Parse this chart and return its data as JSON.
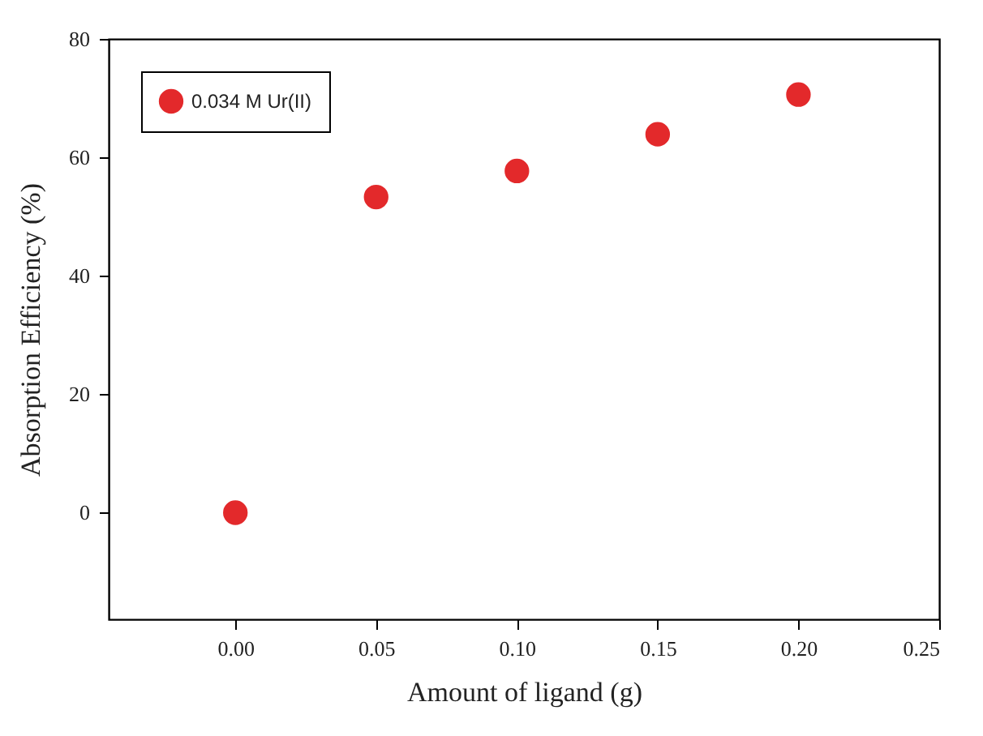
{
  "chart_data": {
    "type": "scatter",
    "xlabel": "Amount of ligand (g)",
    "ylabel": "Absorption Efficiency (%)",
    "x": [
      0.0,
      0.05,
      0.1,
      0.15,
      0.2
    ],
    "series": [
      {
        "name": "0.034 M Ur(II)",
        "color": "#e3292b",
        "values": [
          0,
          53.3,
          57.7,
          63.9,
          70.6
        ]
      }
    ],
    "xlim": [
      -0.045,
      0.25
    ],
    "xticks": [
      {
        "value": 0,
        "label": "0.00"
      },
      {
        "value": 0.05,
        "label": "0.05"
      },
      {
        "value": 0.1,
        "label": "0.10"
      },
      {
        "value": 0.15,
        "label": "0.15"
      },
      {
        "value": 0.2,
        "label": "0.20"
      },
      {
        "value": 0.25,
        "label": "0.25"
      }
    ],
    "ylim": [
      -18,
      80
    ],
    "yticks": [
      0,
      20,
      40,
      60,
      80
    ],
    "grid": false,
    "legend": "top left",
    "marker": "circle"
  }
}
